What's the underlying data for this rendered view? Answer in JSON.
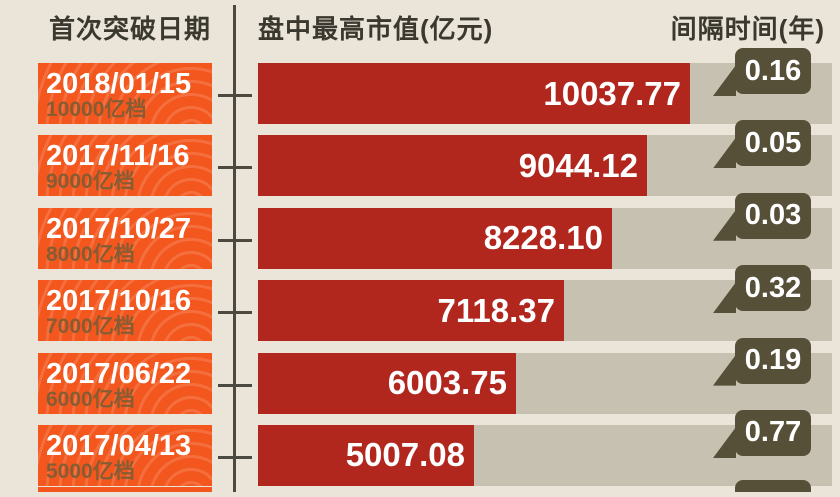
{
  "header": {
    "date_col": "首次突破日期",
    "value_col": "盘中最高市值(亿元)",
    "interval_col": "间隔时间(年)"
  },
  "colors": {
    "background": "#eae5d8",
    "date_box_orange": "#f3571e",
    "bar_red": "#b1271e",
    "track_grey": "#c7c1b2",
    "badge_brown": "#575039",
    "header_text": "#3b382f",
    "tier_text": "#875c33",
    "axis_line": "#4c4941",
    "value_text": "#ffffff"
  },
  "chart_data": {
    "type": "bar",
    "orientation": "horizontal",
    "title": "",
    "xlabel": "盘中最高市值(亿元)",
    "value_unit": "亿元",
    "interval_unit": "年",
    "categories": [
      "10000亿档",
      "9000亿档",
      "8000亿档",
      "7000亿档",
      "6000亿档",
      "5000亿档"
    ],
    "rows": [
      {
        "date": "2018/01/15",
        "tier": "10000亿档",
        "value": 10037.77,
        "value_label": "10037.77",
        "interval": 0.16,
        "interval_label": "0.16"
      },
      {
        "date": "2017/11/16",
        "tier": "9000亿档",
        "value": 9044.12,
        "value_label": "9044.12",
        "interval": 0.05,
        "interval_label": "0.05"
      },
      {
        "date": "2017/10/27",
        "tier": "8000亿档",
        "value": 8228.1,
        "value_label": "8228.10",
        "interval": 0.03,
        "interval_label": "0.03"
      },
      {
        "date": "2017/10/16",
        "tier": "7000亿档",
        "value": 7118.37,
        "value_label": "7118.37",
        "interval": 0.32,
        "interval_label": "0.32"
      },
      {
        "date": "2017/06/22",
        "tier": "6000亿档",
        "value": 6003.75,
        "value_label": "6003.75",
        "interval": 0.19,
        "interval_label": "0.19"
      },
      {
        "date": "2017/04/13",
        "tier": "5000亿档",
        "value": 5007.08,
        "value_label": "5007.08",
        "interval": 0.77,
        "interval_label": "0.77"
      }
    ],
    "layout": {
      "legend": false,
      "grid": false,
      "value_axis_implied_max": 13336,
      "next_row_partially_visible": true
    }
  }
}
